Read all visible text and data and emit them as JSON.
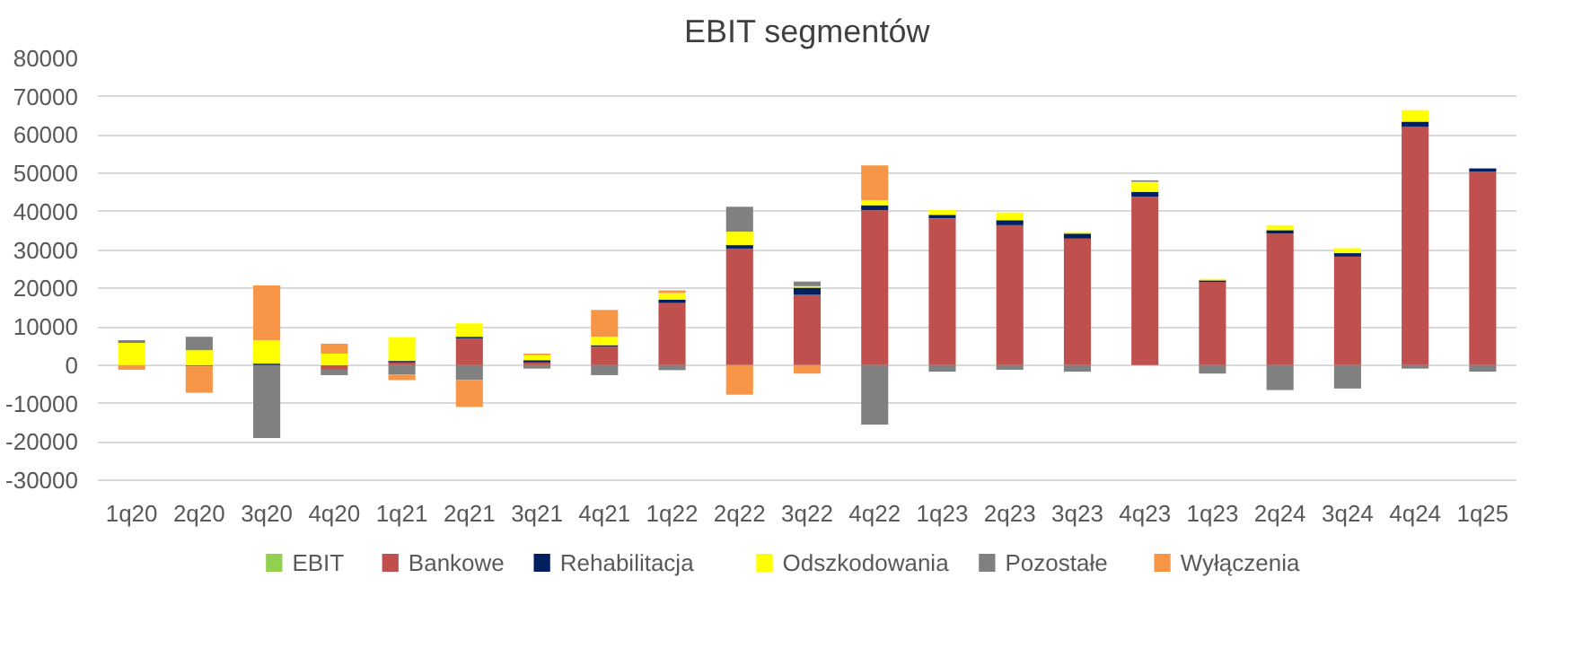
{
  "chart_data": {
    "type": "bar",
    "title": "EBIT segmentów",
    "stacked": true,
    "categories": [
      "1q20",
      "2q20",
      "3q20",
      "4q20",
      "1q21",
      "2q21",
      "3q21",
      "4q21",
      "1q22",
      "2q22",
      "3q22",
      "4q22",
      "1q23",
      "2q23",
      "3q23",
      "4q23",
      "1q23",
      "2q24",
      "3q24",
      "4q24",
      "1q25"
    ],
    "series": [
      {
        "name": "EBIT",
        "color": "#92d050",
        "values": [
          null,
          null,
          null,
          null,
          null,
          null,
          null,
          null,
          null,
          null,
          null,
          null,
          null,
          null,
          null,
          null,
          null,
          null,
          null,
          null,
          null
        ]
      },
      {
        "name": "Bankowe",
        "color": "#c0504d",
        "values": [
          0,
          -300,
          0,
          -1200,
          700,
          7000,
          700,
          4800,
          16200,
          30400,
          18300,
          40400,
          38300,
          36500,
          33000,
          43900,
          21700,
          34300,
          28300,
          62200,
          50400
        ]
      },
      {
        "name": "Rehabilitacja",
        "color": "#002060",
        "values": [
          0,
          0,
          400,
          0,
          400,
          400,
          600,
          400,
          900,
          900,
          1900,
          1300,
          900,
          1300,
          1300,
          1300,
          400,
          900,
          900,
          1300,
          900
        ]
      },
      {
        "name": "Odszkodowania",
        "color": "#ffff00",
        "values": [
          5800,
          3900,
          6100,
          3000,
          6200,
          3500,
          1300,
          2200,
          1700,
          3500,
          400,
          1300,
          1300,
          2000,
          400,
          2600,
          400,
          1300,
          1300,
          3000,
          0
        ]
      },
      {
        "name": "Pozostałe",
        "color": "#808080",
        "values": [
          700,
          3500,
          -19000,
          -1400,
          -2500,
          -3900,
          -900,
          -2600,
          -1300,
          6500,
          1200,
          -15500,
          -1700,
          -1200,
          -1700,
          400,
          -2200,
          -6500,
          -6100,
          -900,
          -1700
        ]
      },
      {
        "name": "Wyłączenia",
        "color": "#f79646",
        "values": [
          -1200,
          -6900,
          14300,
          2600,
          -1400,
          -7000,
          400,
          7000,
          700,
          -7700,
          -2200,
          9100,
          0,
          0,
          0,
          0,
          0,
          0,
          0,
          0,
          0
        ]
      }
    ],
    "ylim": [
      -30000,
      80000
    ],
    "yticks": [
      -30000,
      -20000,
      -10000,
      0,
      10000,
      20000,
      30000,
      40000,
      50000,
      60000,
      70000,
      80000
    ],
    "grid": "y",
    "legend": "bottom"
  }
}
